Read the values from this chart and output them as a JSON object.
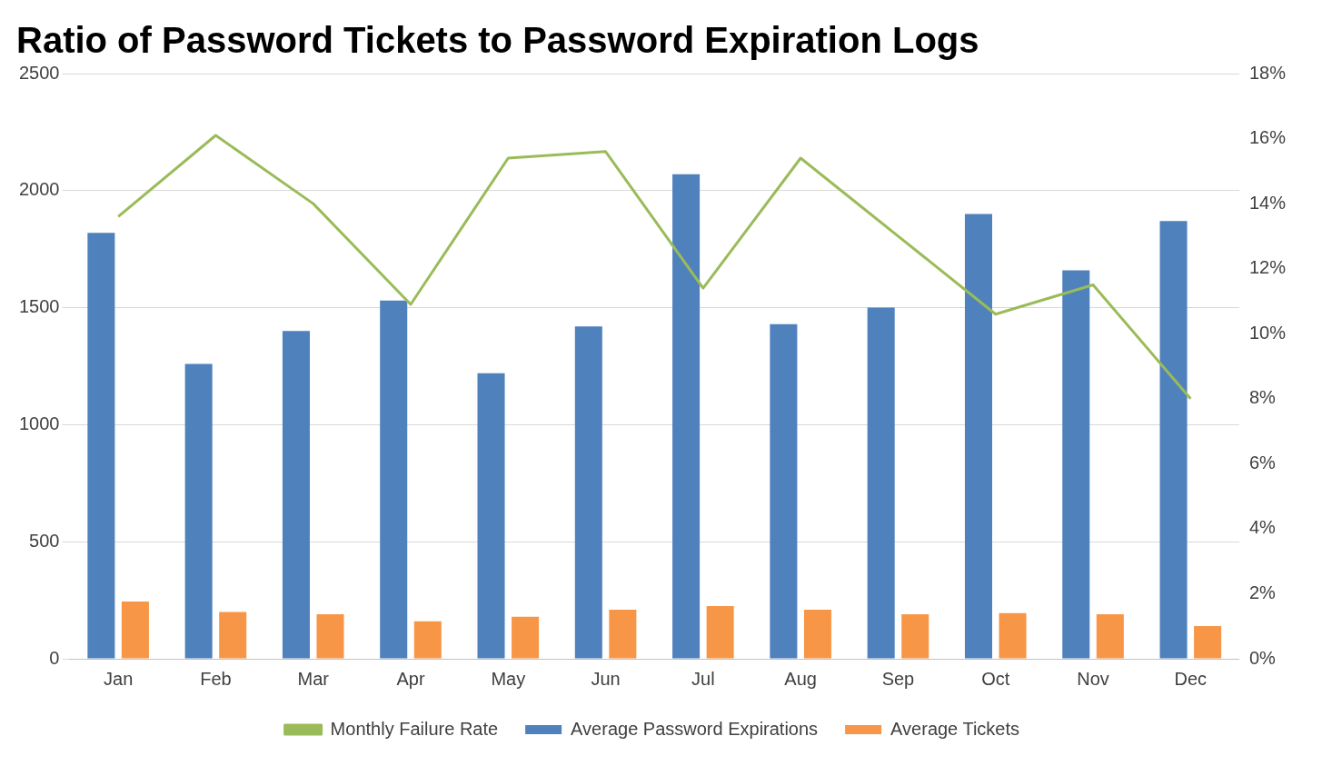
{
  "chart_data": {
    "type": "bar",
    "title": "Ratio of Password Tickets to Password Expiration Logs",
    "categories": [
      "Jan",
      "Feb",
      "Mar",
      "Apr",
      "May",
      "Jun",
      "Jul",
      "Aug",
      "Sep",
      "Oct",
      "Nov",
      "Dec"
    ],
    "series": [
      {
        "name": "Average Password Expirations",
        "color": "#4f81bd",
        "values": [
          1820,
          1260,
          1400,
          1530,
          1220,
          1420,
          2070,
          1430,
          1500,
          1900,
          1660,
          1870
        ]
      },
      {
        "name": "Average Tickets",
        "color": "#f79646",
        "values": [
          245,
          200,
          190,
          160,
          180,
          210,
          225,
          210,
          190,
          195,
          190,
          140
        ]
      },
      {
        "name": "Monthly Failure Rate",
        "type": "line",
        "axis": "y2",
        "color": "#9bbb59",
        "marker": "none",
        "values": [
          13.6,
          16.1,
          14.0,
          10.9,
          15.4,
          15.6,
          11.4,
          15.4,
          13.0,
          10.6,
          11.5,
          8.0
        ]
      }
    ],
    "ylim": [
      0,
      2500
    ],
    "yticks": [
      0,
      500,
      1000,
      1500,
      2000,
      2500
    ],
    "y2lim": [
      0,
      18
    ],
    "y2ticks": [
      {
        "value": 0,
        "label": "0%"
      },
      {
        "value": 2,
        "label": "2%"
      },
      {
        "value": 4,
        "label": "4%"
      },
      {
        "value": 6,
        "label": "6%"
      },
      {
        "value": 8,
        "label": "8%"
      },
      {
        "value": 10,
        "label": "10%"
      },
      {
        "value": 12,
        "label": "12%"
      },
      {
        "value": 14,
        "label": "14%"
      },
      {
        "value": 16,
        "label": "16%"
      },
      {
        "value": 18,
        "label": "18%"
      }
    ],
    "grid": "y",
    "legend": "bottom"
  }
}
